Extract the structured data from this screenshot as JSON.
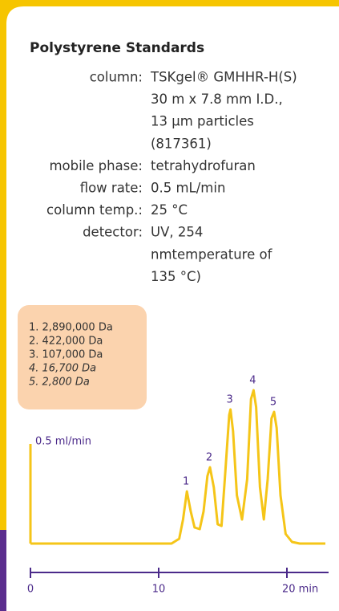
{
  "chart_data": {
    "type": "line",
    "title": "Polystyrene Standards",
    "conditions": [
      {
        "label": "column:",
        "lines": [
          "TSKgel® GMHHR-H(S)",
          "30 m x 7.8 mm I.D.,",
          "13 µm particles",
          "(817361)"
        ]
      },
      {
        "label": "mobile phase:",
        "lines": [
          "tetrahydrofuran"
        ]
      },
      {
        "label": "flow rate:",
        "lines": [
          "0.5 mL/min"
        ]
      },
      {
        "label": "column temp.:",
        "lines": [
          "25 °C"
        ]
      },
      {
        "label": "detector:",
        "lines": [
          "UV, 254",
          "nmtemperature of",
          "135 °C)"
        ]
      }
    ],
    "legend": [
      "1. 2,890,000 Da",
      "2. 422,000 Da",
      "3. 107,000 Da",
      "4. 16,700 Da",
      "5. 2,800 Da"
    ],
    "scale_label": "0.5 ml/min",
    "x": [
      0,
      11,
      11.6,
      11.9,
      12.2,
      12.5,
      12.8,
      13.2,
      13.5,
      13.8,
      14.0,
      14.3,
      14.6,
      14.9,
      15.2,
      15.5,
      15.6,
      15.8,
      16.1,
      16.5,
      16.9,
      17.2,
      17.4,
      17.6,
      17.9,
      18.2,
      18.5,
      18.8,
      19.0,
      19.2,
      19.5,
      19.9,
      20.4,
      21,
      23
    ],
    "series": [
      {
        "color": "#f5c518",
        "values": [
          0,
          0,
          0.03,
          0.15,
          0.325,
          0.2,
          0.1,
          0.09,
          0.2,
          0.42,
          0.475,
          0.35,
          0.12,
          0.11,
          0.45,
          0.8,
          0.835,
          0.7,
          0.3,
          0.15,
          0.4,
          0.9,
          0.955,
          0.85,
          0.35,
          0.15,
          0.4,
          0.78,
          0.82,
          0.72,
          0.3,
          0.06,
          0.01,
          0,
          0
        ]
      }
    ],
    "peaks": [
      {
        "label": "1",
        "x": 12.2,
        "y": 0.325
      },
      {
        "label": "2",
        "x": 14.0,
        "y": 0.475
      },
      {
        "label": "3",
        "x": 15.6,
        "y": 0.835
      },
      {
        "label": "4",
        "x": 17.4,
        "y": 0.955
      },
      {
        "label": "5",
        "x": 19.0,
        "y": 0.82
      }
    ],
    "xlim": [
      0,
      23.25
    ],
    "xticks": [
      0,
      10,
      {
        "value": 20,
        "label": "20 min"
      }
    ],
    "ylim": [
      0,
      1
    ]
  }
}
